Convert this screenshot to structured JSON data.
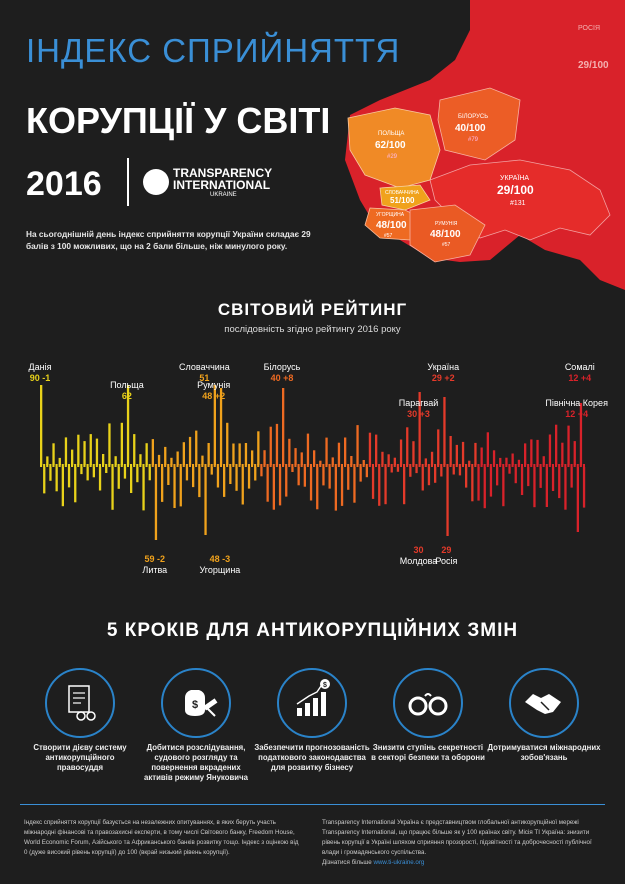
{
  "header": {
    "title_line1": "ІНДЕКС СПРИЙНЯТТЯ",
    "title_line2": "КОРУПЦІЇ У СВІТІ",
    "year": "2016",
    "org_line1": "TRANSPARENCY",
    "org_line2": "INTERNATIONAL",
    "org_line3": "UKRAINE",
    "intro": "На сьогоднішній день індекс сприйняття корупції України складає 29 балів з 100 можливих, що на 2 бали більше, ніж минулого року."
  },
  "map": {
    "regions": [
      {
        "name": "ПОЛЬЩА",
        "score": "62/100",
        "rank": "#29"
      },
      {
        "name": "БІЛОРУСЬ",
        "score": "40/100",
        "rank": "#79"
      },
      {
        "name": "УКРАЇНА",
        "score": "29/100",
        "rank": "#131"
      },
      {
        "name": "СЛОВАЧЧИНА",
        "score": "51/100",
        "rank": "#54"
      },
      {
        "name": "УГОРЩИНА",
        "score": "48/100",
        "rank": "#57"
      },
      {
        "name": "РУМУНІЯ",
        "score": "48/100",
        "rank": "#57"
      },
      {
        "name": "РОСІЯ",
        "score": "29/100",
        "rank": "#131"
      }
    ]
  },
  "ranking": {
    "title": "СВІТОВИЙ РЕЙТИНГ",
    "subtitle": "послідовність згідно рейтингу 2016 року"
  },
  "chart_data": {
    "type": "bar",
    "count": 176,
    "colors": [
      "#e8d21a",
      "#f0a21c",
      "#ee6a22",
      "#e43a2a",
      "#d8222a"
    ],
    "annotations": [
      {
        "country": "Данія",
        "score": "90",
        "delta": "-1",
        "index": 0,
        "side": "up"
      },
      {
        "country": "Польща",
        "score": "62",
        "delta": "",
        "index": 28,
        "side": "up"
      },
      {
        "country": "Литва",
        "score": "59",
        "delta": "-2",
        "index": 37,
        "side": "down"
      },
      {
        "country": "Словаччина",
        "score": "51",
        "delta": "",
        "index": 53,
        "side": "up"
      },
      {
        "country": "Румунія",
        "score": "48",
        "delta": "+2",
        "index": 56,
        "side": "up"
      },
      {
        "country": "Угорщина",
        "score": "48",
        "delta": "-3",
        "index": 58,
        "side": "down"
      },
      {
        "country": "Білорусь",
        "score": "40",
        "delta": "+8",
        "index": 78,
        "side": "up"
      },
      {
        "country": "Молдова",
        "score": "30",
        "delta": "",
        "index": 122,
        "side": "down"
      },
      {
        "country": "Парагвай",
        "score": "30",
        "delta": "+3",
        "index": 122,
        "side": "up"
      },
      {
        "country": "Україна",
        "score": "29",
        "delta": "+2",
        "index": 130,
        "side": "up"
      },
      {
        "country": "Росія",
        "score": "29",
        "delta": "",
        "index": 131,
        "side": "down"
      },
      {
        "country": "Північна Корея",
        "score": "12",
        "delta": "+4",
        "index": 173,
        "side": "up"
      },
      {
        "country": "Сомалі",
        "score": "12",
        "delta": "+4",
        "index": 174,
        "side": "up"
      }
    ]
  },
  "steps": {
    "title": "5 КРОКІВ ДЛЯ АНТИКОРУПЦІЙНИХ ЗМІН",
    "items": [
      {
        "label": "Створити дієву систему антикорупційного правосуддя",
        "icon": "document-handcuffs-icon"
      },
      {
        "label": "Добитися розслідування, судового розгляду та повернення вкрадених активів режиму Януковича",
        "icon": "money-bag-gavel-icon"
      },
      {
        "label": "Забезпечити прогнозованість податкового законодавства для розвитку бізнесу",
        "icon": "growth-chart-icon"
      },
      {
        "label": "Знизити ступінь секретності в секторі безпеки та оборони",
        "icon": "handcuffs-icon"
      },
      {
        "label": "Дотримуватися міжнародних зобов'язань",
        "icon": "handshake-icon"
      }
    ]
  },
  "footer": {
    "left": "Індекс сприйняття корупції базується на незалежних опитуваннях, в яких беруть участь міжнародні фінансові та правозахисні експерти, в тому числі Світового банку, Freedom House, World Economic Forum, Азійського та Африканського банків розвитку тощо. Індекс з оцінкою від 0 (дуже високий рівень корупції) до 100 (вкрай низький рівень корупції).",
    "right": "Transparency International Україна є представництвом глобальної антикорупційної мережі Transparency International, що працює більше як у 100 країнах світу. Місія TI Україна: знизити рівень корупції в Україні шляхом сприяння прозорості, підзвітності та доброчесності публічної влади і громадянського суспільства.",
    "more_label": "Дізнатися більше",
    "link": "www.ti-ukraine.org"
  }
}
